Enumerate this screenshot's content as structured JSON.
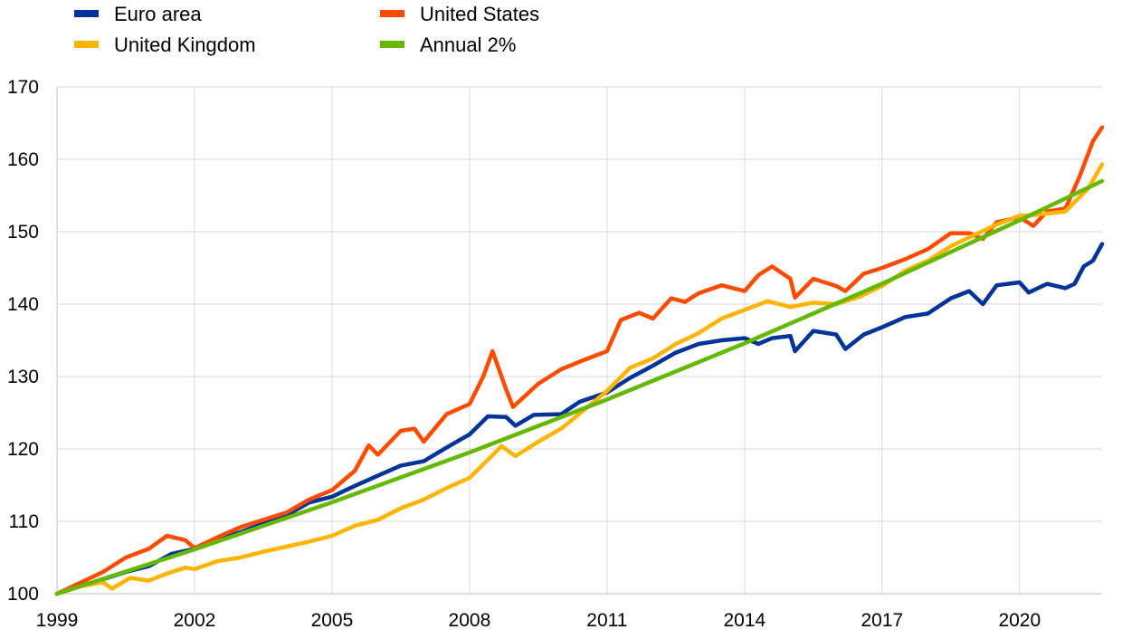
{
  "chart_data": {
    "type": "line",
    "title": "",
    "xlabel": "",
    "ylabel": "",
    "xlim": [
      1999,
      2021.8
    ],
    "ylim": [
      100,
      170
    ],
    "x_ticks": [
      1999,
      2002,
      2005,
      2008,
      2011,
      2014,
      2017,
      2020
    ],
    "y_ticks": [
      100,
      110,
      120,
      130,
      140,
      150,
      160,
      170
    ],
    "grid": true,
    "legend_position": "top-left",
    "series": [
      {
        "name": "Euro area",
        "color": "#003399",
        "points": [
          [
            1999.0,
            100.0
          ],
          [
            1999.5,
            101.0
          ],
          [
            2000.0,
            102.0
          ],
          [
            2000.5,
            103.0
          ],
          [
            2001.0,
            103.8
          ],
          [
            2001.5,
            105.5
          ],
          [
            2002.0,
            106.2
          ],
          [
            2002.5,
            107.6
          ],
          [
            2003.0,
            108.5
          ],
          [
            2003.5,
            109.7
          ],
          [
            2004.0,
            110.8
          ],
          [
            2004.5,
            112.6
          ],
          [
            2005.0,
            113.4
          ],
          [
            2005.5,
            114.9
          ],
          [
            2006.0,
            116.3
          ],
          [
            2006.5,
            117.7
          ],
          [
            2007.0,
            118.3
          ],
          [
            2007.5,
            120.2
          ],
          [
            2008.0,
            122.0
          ],
          [
            2008.4,
            124.5
          ],
          [
            2008.8,
            124.4
          ],
          [
            2009.0,
            123.2
          ],
          [
            2009.4,
            124.7
          ],
          [
            2010.0,
            124.8
          ],
          [
            2010.4,
            126.5
          ],
          [
            2011.0,
            127.8
          ],
          [
            2011.5,
            129.8
          ],
          [
            2012.0,
            131.5
          ],
          [
            2012.5,
            133.3
          ],
          [
            2013.0,
            134.5
          ],
          [
            2013.5,
            135.0
          ],
          [
            2014.0,
            135.3
          ],
          [
            2014.3,
            134.5
          ],
          [
            2014.6,
            135.3
          ],
          [
            2015.0,
            135.6
          ],
          [
            2015.1,
            133.5
          ],
          [
            2015.5,
            136.3
          ],
          [
            2016.0,
            135.8
          ],
          [
            2016.2,
            133.8
          ],
          [
            2016.6,
            135.8
          ],
          [
            2017.0,
            136.8
          ],
          [
            2017.5,
            138.2
          ],
          [
            2018.0,
            138.7
          ],
          [
            2018.5,
            140.8
          ],
          [
            2018.9,
            141.8
          ],
          [
            2019.2,
            140.0
          ],
          [
            2019.5,
            142.6
          ],
          [
            2020.0,
            143.0
          ],
          [
            2020.2,
            141.6
          ],
          [
            2020.6,
            142.8
          ],
          [
            2021.0,
            142.2
          ],
          [
            2021.2,
            142.8
          ],
          [
            2021.4,
            145.2
          ],
          [
            2021.6,
            146.0
          ],
          [
            2021.8,
            148.3
          ]
        ]
      },
      {
        "name": "United States",
        "color": "#ff4b00",
        "points": [
          [
            1999.0,
            100.0
          ],
          [
            1999.5,
            101.5
          ],
          [
            2000.0,
            103.0
          ],
          [
            2000.5,
            105.0
          ],
          [
            2001.0,
            106.2
          ],
          [
            2001.4,
            108.0
          ],
          [
            2001.8,
            107.4
          ],
          [
            2002.0,
            106.3
          ],
          [
            2002.5,
            107.8
          ],
          [
            2003.0,
            109.2
          ],
          [
            2003.5,
            110.2
          ],
          [
            2004.0,
            111.2
          ],
          [
            2004.5,
            113.0
          ],
          [
            2005.0,
            114.3
          ],
          [
            2005.5,
            117.0
          ],
          [
            2005.8,
            120.5
          ],
          [
            2006.0,
            119.2
          ],
          [
            2006.5,
            122.5
          ],
          [
            2006.8,
            122.8
          ],
          [
            2007.0,
            121.0
          ],
          [
            2007.5,
            124.8
          ],
          [
            2008.0,
            126.2
          ],
          [
            2008.3,
            130.0
          ],
          [
            2008.5,
            133.5
          ],
          [
            2008.8,
            128.2
          ],
          [
            2008.95,
            125.8
          ],
          [
            2009.5,
            129.0
          ],
          [
            2010.0,
            131.0
          ],
          [
            2010.5,
            132.3
          ],
          [
            2011.0,
            133.5
          ],
          [
            2011.3,
            137.8
          ],
          [
            2011.7,
            138.8
          ],
          [
            2012.0,
            138.0
          ],
          [
            2012.4,
            140.8
          ],
          [
            2012.7,
            140.3
          ],
          [
            2013.0,
            141.5
          ],
          [
            2013.5,
            142.6
          ],
          [
            2014.0,
            141.8
          ],
          [
            2014.3,
            144.0
          ],
          [
            2014.6,
            145.2
          ],
          [
            2015.0,
            143.5
          ],
          [
            2015.1,
            140.9
          ],
          [
            2015.5,
            143.5
          ],
          [
            2016.0,
            142.5
          ],
          [
            2016.2,
            141.8
          ],
          [
            2016.6,
            144.2
          ],
          [
            2017.0,
            145.0
          ],
          [
            2017.5,
            146.2
          ],
          [
            2018.0,
            147.6
          ],
          [
            2018.5,
            149.8
          ],
          [
            2018.9,
            149.8
          ],
          [
            2019.2,
            149.0
          ],
          [
            2019.5,
            151.3
          ],
          [
            2020.0,
            152.0
          ],
          [
            2020.3,
            150.8
          ],
          [
            2020.6,
            152.8
          ],
          [
            2021.0,
            153.2
          ],
          [
            2021.3,
            157.5
          ],
          [
            2021.6,
            162.5
          ],
          [
            2021.8,
            164.4
          ]
        ]
      },
      {
        "name": "United Kingdom",
        "color": "#ffb400",
        "points": [
          [
            1999.0,
            100.0
          ],
          [
            1999.5,
            101.0
          ],
          [
            2000.0,
            101.6
          ],
          [
            2000.2,
            100.7
          ],
          [
            2000.6,
            102.2
          ],
          [
            2001.0,
            101.8
          ],
          [
            2001.4,
            102.8
          ],
          [
            2001.8,
            103.6
          ],
          [
            2002.0,
            103.4
          ],
          [
            2002.5,
            104.5
          ],
          [
            2003.0,
            105.0
          ],
          [
            2003.5,
            105.8
          ],
          [
            2004.0,
            106.5
          ],
          [
            2004.5,
            107.2
          ],
          [
            2005.0,
            108.0
          ],
          [
            2005.5,
            109.4
          ],
          [
            2006.0,
            110.2
          ],
          [
            2006.5,
            111.8
          ],
          [
            2007.0,
            113.0
          ],
          [
            2007.5,
            114.6
          ],
          [
            2008.0,
            116.0
          ],
          [
            2008.4,
            118.5
          ],
          [
            2008.7,
            120.4
          ],
          [
            2009.0,
            119.0
          ],
          [
            2009.5,
            121.0
          ],
          [
            2010.0,
            122.8
          ],
          [
            2010.5,
            125.4
          ],
          [
            2011.0,
            128.0
          ],
          [
            2011.5,
            131.2
          ],
          [
            2012.0,
            132.5
          ],
          [
            2012.5,
            134.5
          ],
          [
            2013.0,
            136.0
          ],
          [
            2013.5,
            138.0
          ],
          [
            2014.0,
            139.2
          ],
          [
            2014.5,
            140.4
          ],
          [
            2015.0,
            139.6
          ],
          [
            2015.5,
            140.2
          ],
          [
            2016.0,
            140.0
          ],
          [
            2016.5,
            141.0
          ],
          [
            2017.0,
            142.5
          ],
          [
            2017.5,
            144.6
          ],
          [
            2018.0,
            146.0
          ],
          [
            2018.5,
            148.0
          ],
          [
            2019.0,
            149.5
          ],
          [
            2019.5,
            151.0
          ],
          [
            2020.0,
            152.2
          ],
          [
            2020.3,
            152.3
          ],
          [
            2020.6,
            152.5
          ],
          [
            2021.0,
            152.8
          ],
          [
            2021.5,
            156.0
          ],
          [
            2021.8,
            159.3
          ]
        ]
      },
      {
        "name": "Annual 2%",
        "color": "#65b800",
        "points": [
          [
            1999.0,
            100.0
          ],
          [
            2002.0,
            106.12
          ],
          [
            2005.0,
            112.62
          ],
          [
            2008.0,
            119.51
          ],
          [
            2011.0,
            126.82
          ],
          [
            2014.0,
            134.59
          ],
          [
            2017.0,
            142.82
          ],
          [
            2020.0,
            151.57
          ],
          [
            2021.8,
            157.0
          ]
        ]
      }
    ]
  }
}
